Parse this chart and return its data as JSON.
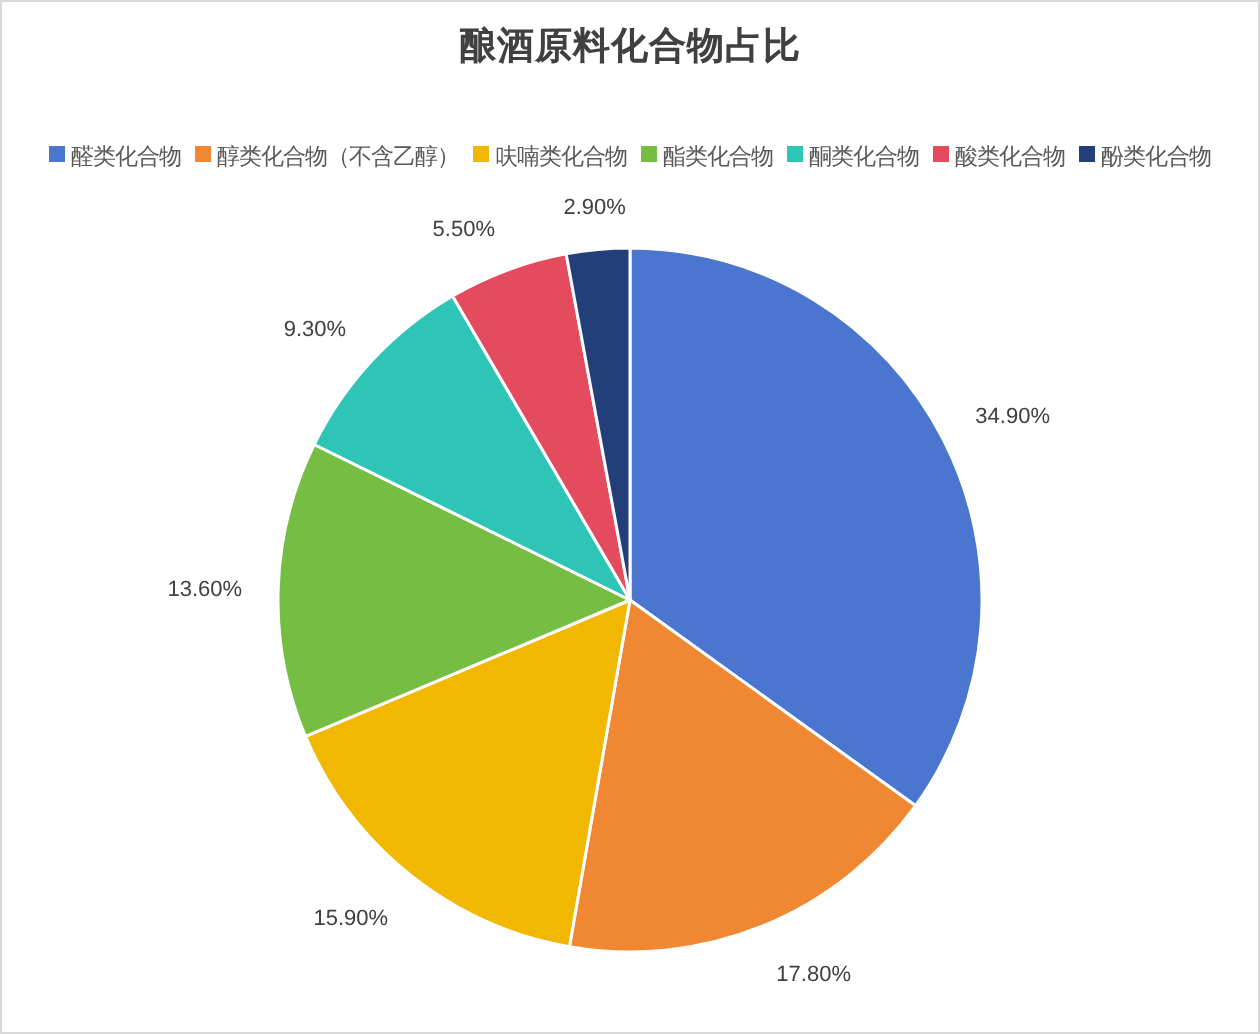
{
  "chart_data": {
    "type": "pie",
    "title": "酿酒原料化合物占比",
    "categories": [
      "醛类化合物",
      "醇类化合物（不含乙醇）",
      "呋喃类化合物",
      "酯类化合物",
      "酮类化合物",
      "酸类化合物",
      "酚类化合物"
    ],
    "values": [
      34.9,
      17.8,
      15.9,
      13.6,
      9.3,
      5.5,
      2.9
    ],
    "colors": [
      "#4a76d0",
      "#f08732",
      "#f2b800",
      "#76bd44",
      "#2ec4b6",
      "#e54b5f",
      "#233f7a"
    ],
    "value_labels": [
      "34.90%",
      "17.80%",
      "15.90%",
      "13.60%",
      "9.30%",
      "5.50%",
      "2.90%"
    ],
    "legend": "top"
  }
}
